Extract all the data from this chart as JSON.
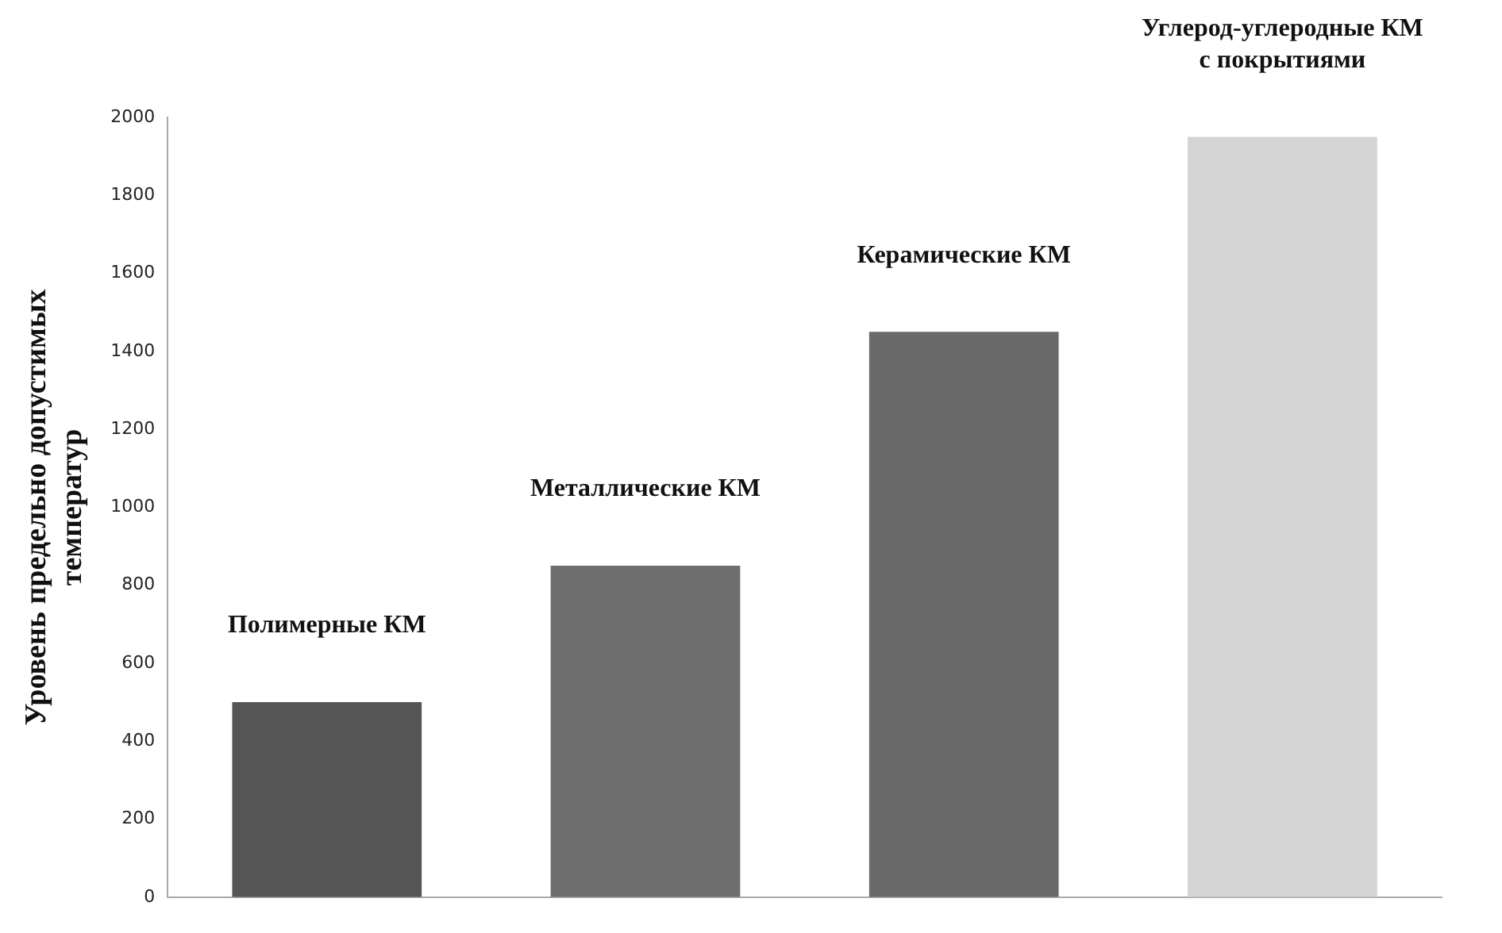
{
  "chart_data": {
    "type": "bar",
    "ylabel": "Уровень предельно допустимых\nтемператур",
    "categories": [
      "Полимерные КМ",
      "Металлические КМ",
      "Керамические КМ",
      "Углерод-углеродные КМ\nс покрытиями"
    ],
    "values": [
      500,
      850,
      1450,
      1950
    ],
    "colors": [
      "#555555",
      "#6e6e6e",
      "#6a6a6a",
      "#d4d4d4"
    ],
    "ylim": [
      0,
      2000
    ],
    "yticks": [
      0,
      200,
      400,
      600,
      800,
      1000,
      1200,
      1400,
      1600,
      1800,
      2000
    ],
    "grid": false
  }
}
